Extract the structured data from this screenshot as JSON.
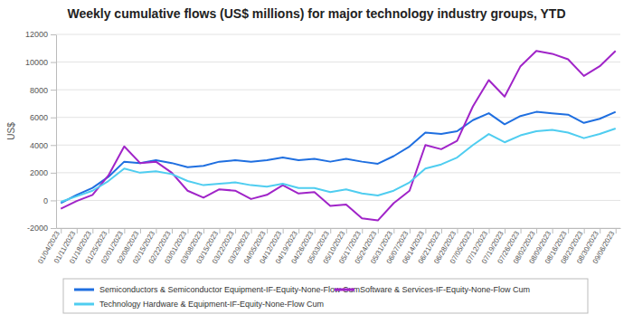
{
  "chart_data": {
    "type": "line",
    "title": "Weekly cumulative flows (US$ millions) for major technology industry groups, YTD",
    "y_label": "US$",
    "categories": [
      "01/04/2023",
      "01/11/2023",
      "01/18/2023",
      "01/25/2023",
      "02/01/2023",
      "02/08/2023",
      "02/15/2023",
      "02/22/2023",
      "03/01/2023",
      "03/08/2023",
      "03/15/2023",
      "03/22/2023",
      "03/29/2023",
      "04/05/2023",
      "04/12/2023",
      "04/19/2023",
      "04/26/2023",
      "05/03/2023",
      "05/10/2023",
      "05/17/2023",
      "05/24/2023",
      "05/31/2023",
      "06/07/2023",
      "06/14/2023",
      "06/21/2023",
      "06/28/2023",
      "07/05/2023",
      "07/12/2023",
      "07/19/2023",
      "07/26/2023",
      "08/02/2023",
      "08/09/2023",
      "08/16/2023",
      "08/23/2023",
      "08/30/2023",
      "09/06/2023"
    ],
    "series": [
      {
        "name": "Semiconductors & Semiconductor Equipment-IF-Equity-None-Flow Cum",
        "color": "#1f6fe0",
        "values": [
          -200,
          400,
          900,
          1700,
          2800,
          2700,
          2900,
          2700,
          2400,
          2500,
          2800,
          2900,
          2800,
          2900,
          3100,
          2900,
          3000,
          2800,
          3000,
          2800,
          2650,
          3200,
          3900,
          4900,
          4800,
          5000,
          5800,
          6300,
          5500,
          6100,
          6400,
          6300,
          6200,
          5600,
          5900,
          6400
        ]
      },
      {
        "name": "Software & Services-IF-Equity-None-Flow Cum",
        "color": "#a024c8",
        "values": [
          -600,
          -50,
          400,
          1800,
          3900,
          2700,
          2800,
          2000,
          700,
          200,
          800,
          700,
          100,
          400,
          1100,
          500,
          600,
          -400,
          -300,
          -1300,
          -1450,
          -200,
          700,
          4000,
          3700,
          4300,
          6800,
          8700,
          7500,
          9700,
          10800,
          10600,
          10200,
          9000,
          9700,
          10800
        ]
      },
      {
        "name": "Technology Hardware & Equipment-IF-Equity-None-Flow Cum",
        "color": "#4fcdf0",
        "values": [
          -100,
          300,
          700,
          1400,
          2300,
          2000,
          2100,
          1900,
          1400,
          1100,
          1200,
          1300,
          1100,
          1000,
          1200,
          900,
          900,
          600,
          800,
          500,
          350,
          700,
          1300,
          2300,
          2600,
          3100,
          4000,
          4800,
          4200,
          4700,
          5000,
          5100,
          4900,
          4500,
          4800,
          5200
        ]
      }
    ],
    "ylim": [
      -2000,
      12000
    ],
    "yticks": [
      -2000,
      0,
      2000,
      4000,
      6000,
      8000,
      10000,
      12000
    ],
    "grid": true,
    "legend": "bottom"
  }
}
